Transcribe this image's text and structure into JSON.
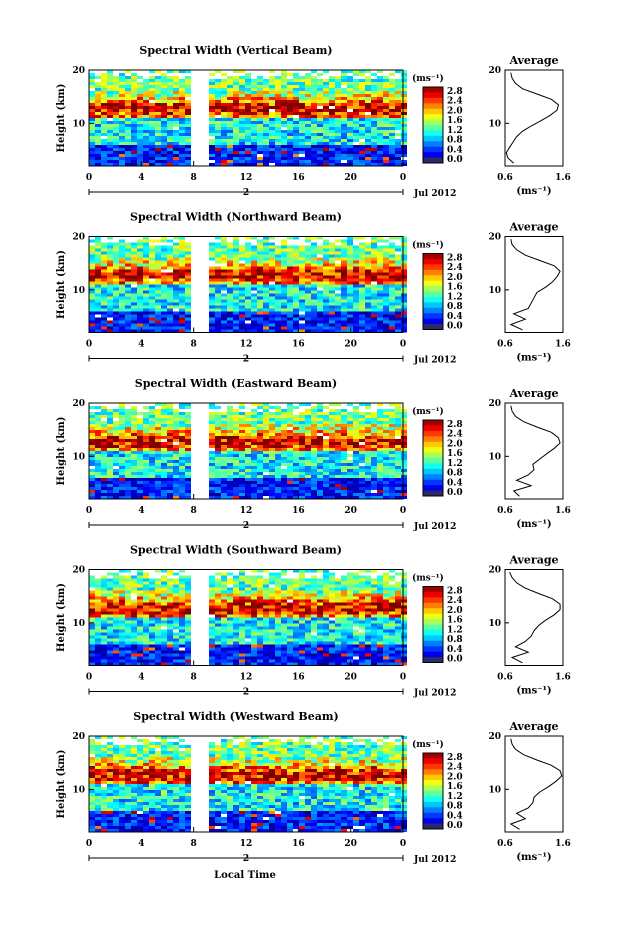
{
  "figure": {
    "x_axis_title": "Local Time",
    "colorbar_unit": "(ms⁻¹)",
    "average_title": "Average",
    "average_unit": "(ms⁻¹)",
    "height_label": "Height (km)",
    "date_label": "Jul 2012",
    "day_label": "2"
  },
  "chart_data": [
    {
      "type": "heatmap",
      "title": "Spectral Width (Vertical Beam)",
      "xlabel": "Local Time",
      "ylabel": "Height (km)",
      "xlim": [
        0,
        24
      ],
      "ylim": [
        2,
        20
      ],
      "x_ticks": [
        "0",
        "4",
        "8",
        "12",
        "16",
        "20",
        "0"
      ],
      "y_ticks": [
        "20",
        "10"
      ],
      "date": "Jul 2012",
      "day": "2",
      "data_gap_hours": [
        8.0,
        9.0
      ],
      "colorbar": {
        "unit": "(ms⁻¹)",
        "range": [
          0.0,
          2.8
        ],
        "ticks": [
          "2.8",
          "2.4",
          "2.0",
          "1.6",
          "1.2",
          "0.8",
          "0.4",
          "0.0"
        ]
      },
      "pattern": {
        "peak_height_km": 13,
        "upper_limit_km": 18.5
      },
      "average_profile": {
        "title": "Average",
        "unit": "(ms⁻¹)",
        "x_ticks": [
          "0.6",
          "1.6"
        ],
        "xlim": [
          0.6,
          1.6
        ],
        "y_ticks": [
          "20",
          "10"
        ],
        "heights_km": [
          2.5,
          3.5,
          4.5,
          5.5,
          6.5,
          7.5,
          8.5,
          9.5,
          10.5,
          11.5,
          12.5,
          13.5,
          14.5,
          15.5,
          16.5,
          17.5,
          18.5,
          19.5
        ],
        "values": [
          0.75,
          0.65,
          0.62,
          0.68,
          0.74,
          0.8,
          0.9,
          1.05,
          1.22,
          1.38,
          1.5,
          1.52,
          1.4,
          1.15,
          0.9,
          0.78,
          0.72,
          0.7
        ]
      }
    },
    {
      "type": "heatmap",
      "title": "Spectral Width (Northward Beam)",
      "xlabel": "Local Time",
      "ylabel": "Height (km)",
      "xlim": [
        0,
        24
      ],
      "ylim": [
        2,
        20
      ],
      "x_ticks": [
        "0",
        "4",
        "8",
        "12",
        "16",
        "20",
        "0"
      ],
      "y_ticks": [
        "20",
        "10"
      ],
      "date": "Jul 2012",
      "day": "2",
      "data_gap_hours": [
        8.0,
        9.0
      ],
      "colorbar": {
        "unit": "(ms⁻¹)",
        "range": [
          0.0,
          2.8
        ],
        "ticks": [
          "2.8",
          "2.4",
          "2.0",
          "1.6",
          "1.2",
          "0.8",
          "0.4",
          "0.0"
        ]
      },
      "pattern": {
        "peak_height_km": 13,
        "upper_limit_km": 18.5
      },
      "average_profile": {
        "title": "Average",
        "unit": "(ms⁻¹)",
        "x_ticks": [
          "0.6",
          "1.6"
        ],
        "xlim": [
          0.6,
          1.6
        ],
        "y_ticks": [
          "20",
          "10"
        ],
        "heights_km": [
          2.5,
          3.5,
          4.5,
          5.5,
          6.5,
          7.5,
          8.5,
          9.5,
          10.5,
          11.5,
          12.5,
          13.5,
          14.5,
          15.5,
          16.5,
          17.5,
          18.5,
          19.5
        ],
        "values": [
          0.9,
          0.7,
          0.95,
          0.75,
          1.0,
          1.05,
          1.1,
          1.15,
          1.3,
          1.42,
          1.5,
          1.55,
          1.45,
          1.2,
          0.95,
          0.8,
          0.72,
          0.7
        ]
      }
    },
    {
      "type": "heatmap",
      "title": "Spectral Width (Eastward Beam)",
      "xlabel": "Local Time",
      "ylabel": "Height (km)",
      "xlim": [
        0,
        24
      ],
      "ylim": [
        2,
        20
      ],
      "x_ticks": [
        "0",
        "4",
        "8",
        "12",
        "16",
        "20",
        "0"
      ],
      "y_ticks": [
        "20",
        "10"
      ],
      "date": "Jul 2012",
      "day": "2",
      "data_gap_hours": [
        8.0,
        9.0
      ],
      "colorbar": {
        "unit": "(ms⁻¹)",
        "range": [
          0.0,
          2.8
        ],
        "ticks": [
          "2.8",
          "2.4",
          "2.0",
          "1.6",
          "1.2",
          "0.8",
          "0.4",
          "0.0"
        ]
      },
      "pattern": {
        "peak_height_km": 13,
        "upper_limit_km": 18.5
      },
      "average_profile": {
        "title": "Average",
        "unit": "(ms⁻¹)",
        "x_ticks": [
          "0.6",
          "1.6"
        ],
        "xlim": [
          0.6,
          1.6
        ],
        "y_ticks": [
          "20",
          "10"
        ],
        "heights_km": [
          2.5,
          3.5,
          4.5,
          5.5,
          6.5,
          7.5,
          8.5,
          9.5,
          10.5,
          11.5,
          12.5,
          13.5,
          14.5,
          15.5,
          16.5,
          17.5,
          18.5,
          19.5
        ],
        "values": [
          0.85,
          0.75,
          1.05,
          0.8,
          1.0,
          1.1,
          1.08,
          1.2,
          1.32,
          1.45,
          1.55,
          1.52,
          1.4,
          1.15,
          0.92,
          0.78,
          0.72,
          0.7
        ]
      }
    },
    {
      "type": "heatmap",
      "title": "Spectral Width (Southward Beam)",
      "xlabel": "Local Time",
      "ylabel": "Height (km)",
      "xlim": [
        0,
        24
      ],
      "ylim": [
        2,
        20
      ],
      "x_ticks": [
        "0",
        "4",
        "8",
        "12",
        "16",
        "20",
        "0"
      ],
      "y_ticks": [
        "20",
        "10"
      ],
      "date": "Jul 2012",
      "day": "2",
      "data_gap_hours": [
        8.0,
        9.0
      ],
      "colorbar": {
        "unit": "(ms⁻¹)",
        "range": [
          0.0,
          2.8
        ],
        "ticks": [
          "2.8",
          "2.4",
          "2.0",
          "1.6",
          "1.2",
          "0.8",
          "0.4",
          "0.0"
        ]
      },
      "pattern": {
        "peak_height_km": 13,
        "upper_limit_km": 18.5
      },
      "average_profile": {
        "title": "Average",
        "unit": "(ms⁻¹)",
        "x_ticks": [
          "0.6",
          "1.6"
        ],
        "xlim": [
          0.6,
          1.6
        ],
        "y_ticks": [
          "20",
          "10"
        ],
        "heights_km": [
          2.5,
          3.5,
          4.5,
          5.5,
          6.5,
          7.5,
          8.5,
          9.5,
          10.5,
          11.5,
          12.5,
          13.5,
          14.5,
          15.5,
          16.5,
          17.5,
          18.5,
          19.5
        ],
        "values": [
          0.9,
          0.72,
          1.0,
          0.78,
          0.95,
          1.05,
          1.1,
          1.18,
          1.3,
          1.45,
          1.55,
          1.55,
          1.42,
          1.18,
          0.95,
          0.8,
          0.72,
          0.68
        ]
      }
    },
    {
      "type": "heatmap",
      "title": "Spectral Width (Westward Beam)",
      "xlabel": "Local Time",
      "ylabel": "Height (km)",
      "xlim": [
        0,
        24
      ],
      "ylim": [
        2,
        20
      ],
      "x_ticks": [
        "0",
        "4",
        "8",
        "12",
        "16",
        "20",
        "0"
      ],
      "y_ticks": [
        "20",
        "10"
      ],
      "date": "Jul 2012",
      "day": "2",
      "data_gap_hours": [
        8.0,
        9.0
      ],
      "colorbar": {
        "unit": "(ms⁻¹)",
        "range": [
          0.0,
          2.8
        ],
        "ticks": [
          "2.8",
          "2.4",
          "2.0",
          "1.6",
          "1.2",
          "0.8",
          "0.4",
          "0.0"
        ]
      },
      "pattern": {
        "peak_height_km": 13,
        "upper_limit_km": 18.5
      },
      "average_profile": {
        "title": "Average",
        "unit": "(ms⁻¹)",
        "x_ticks": [
          "0.6",
          "1.6"
        ],
        "xlim": [
          0.6,
          1.6
        ],
        "y_ticks": [
          "20",
          "10"
        ],
        "heights_km": [
          2.5,
          3.5,
          4.5,
          5.5,
          6.5,
          7.5,
          8.5,
          9.5,
          10.5,
          11.5,
          12.5,
          13.5,
          14.5,
          15.5,
          16.5,
          17.5,
          18.5,
          19.5
        ],
        "values": [
          0.85,
          0.7,
          0.95,
          0.8,
          1.0,
          1.08,
          1.1,
          1.2,
          1.35,
          1.48,
          1.58,
          1.55,
          1.4,
          1.15,
          0.92,
          0.78,
          0.72,
          0.7
        ]
      }
    }
  ]
}
